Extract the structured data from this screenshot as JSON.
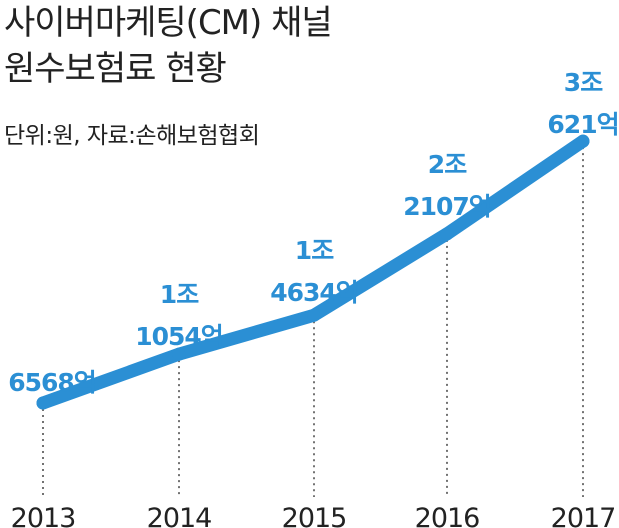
{
  "title_lines": [
    "사이버마케팅(CM) 채널",
    "원수보험료 현황"
  ],
  "subtitle": "단위:원, 자료:손해보험협회",
  "colors": {
    "line": "#2b8fd4",
    "label": "#2b8fd4",
    "text": "#222222",
    "guide": "#444444"
  },
  "chart_data": {
    "type": "line",
    "title": "사이버마케팅(CM) 채널 원수보험료 현황",
    "unit": "원",
    "source": "손해보험협회",
    "categories": [
      "2013",
      "2014",
      "2015",
      "2016",
      "2017"
    ],
    "values": [
      656800000000,
      1105400000000,
      1463400000000,
      2210700000000,
      3062100000000
    ],
    "data_labels": [
      [
        "6568억"
      ],
      [
        "1조",
        "1054억"
      ],
      [
        "1조",
        "4634억"
      ],
      [
        "2조",
        "2107억"
      ],
      [
        "3조",
        "621억"
      ]
    ],
    "grid": false,
    "legend": "none"
  }
}
